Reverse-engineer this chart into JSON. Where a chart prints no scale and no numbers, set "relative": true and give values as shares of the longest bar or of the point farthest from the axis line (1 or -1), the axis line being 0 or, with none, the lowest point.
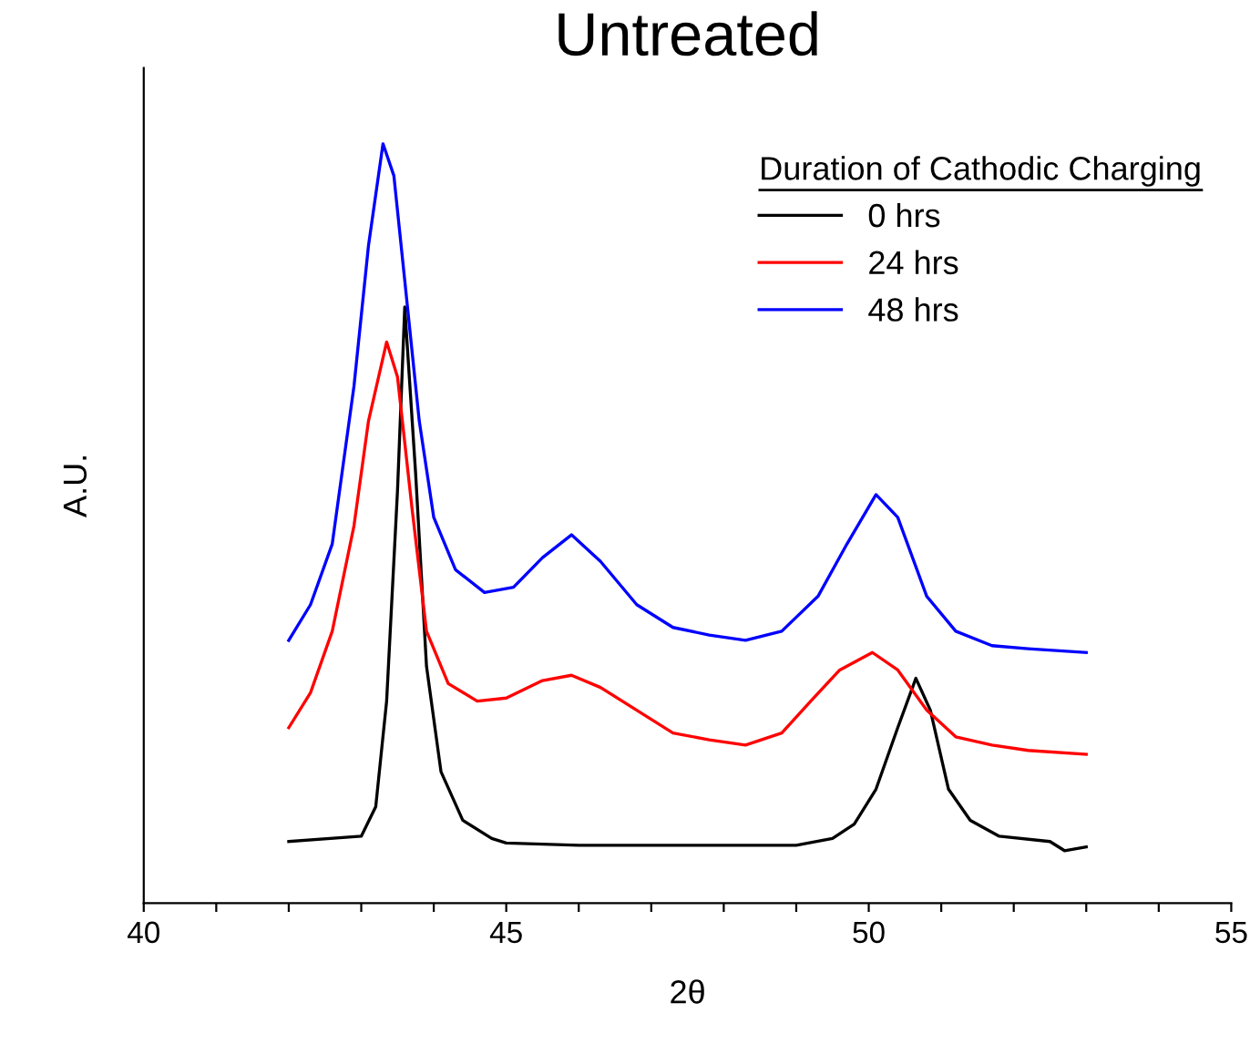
{
  "chart_data": {
    "type": "line",
    "title": "Untreated",
    "xlabel": "2θ",
    "ylabel": "A.U.",
    "legend_title": "Duration of Cathodic Charging",
    "legend": "top right",
    "grid": false,
    "relative": true,
    "marker": "none",
    "line_style": "solid",
    "xlim": [
      40,
      55
    ],
    "xticks": [
      40,
      {
        "value": 41,
        "label": null
      },
      {
        "value": 42,
        "label": null
      },
      {
        "value": 43,
        "label": null
      },
      {
        "value": 44,
        "label": null
      },
      45,
      {
        "value": 46,
        "label": null
      },
      {
        "value": 47,
        "label": null
      },
      {
        "value": 48,
        "label": null
      },
      {
        "value": 49,
        "label": null
      },
      50,
      {
        "value": 51,
        "label": null
      },
      {
        "value": 52,
        "label": null
      },
      {
        "value": 53,
        "label": null
      },
      {
        "value": 54,
        "label": null
      },
      55
    ],
    "series": [
      {
        "name": "0 hrs",
        "color": "#000000",
        "x": [
          42,
          43,
          43.2,
          43.35,
          43.5,
          43.6,
          43.75,
          43.9,
          44.1,
          44.4,
          44.8,
          45,
          46,
          47,
          48,
          49,
          49.5,
          49.8,
          50.1,
          50.4,
          50.65,
          50.85,
          51.1,
          51.4,
          51.8,
          52.5,
          52.7,
          53
        ],
        "values": [
          0.081,
          0.088,
          0.127,
          0.266,
          0.543,
          0.785,
          0.566,
          0.312,
          0.173,
          0.109,
          0.085,
          0.079,
          0.076,
          0.076,
          0.076,
          0.076,
          0.085,
          0.104,
          0.15,
          0.231,
          0.296,
          0.254,
          0.15,
          0.109,
          0.088,
          0.081,
          0.069,
          0.074
        ]
      },
      {
        "name": "24 hrs",
        "color": "#ff0000",
        "x": [
          42,
          42.3,
          42.6,
          42.9,
          43.1,
          43.35,
          43.5,
          43.7,
          43.9,
          44.2,
          44.6,
          45,
          45.5,
          45.9,
          46.3,
          46.8,
          47.3,
          47.8,
          48.3,
          48.8,
          49.2,
          49.6,
          50.05,
          50.4,
          50.8,
          51.2,
          51.7,
          52.2,
          53
        ],
        "values": [
          0.231,
          0.277,
          0.358,
          0.497,
          0.635,
          0.739,
          0.693,
          0.52,
          0.358,
          0.289,
          0.266,
          0.27,
          0.293,
          0.3,
          0.284,
          0.254,
          0.224,
          0.215,
          0.208,
          0.224,
          0.266,
          0.307,
          0.33,
          0.307,
          0.254,
          0.219,
          0.208,
          0.201,
          0.196
        ]
      },
      {
        "name": "48 hrs",
        "color": "#0000ff",
        "x": [
          42,
          42.3,
          42.6,
          42.9,
          43.1,
          43.3,
          43.45,
          43.6,
          43.8,
          44.0,
          44.3,
          44.7,
          45.1,
          45.5,
          45.9,
          46.3,
          46.8,
          47.3,
          47.8,
          48.3,
          48.8,
          49.3,
          49.7,
          50.1,
          50.4,
          50.8,
          51.2,
          51.7,
          52.2,
          53
        ],
        "values": [
          0.346,
          0.393,
          0.473,
          0.681,
          0.866,
          1.0,
          0.958,
          0.82,
          0.635,
          0.508,
          0.439,
          0.409,
          0.416,
          0.455,
          0.485,
          0.45,
          0.393,
          0.363,
          0.353,
          0.346,
          0.358,
          0.404,
          0.473,
          0.538,
          0.508,
          0.404,
          0.358,
          0.339,
          0.335,
          0.33
        ]
      }
    ]
  }
}
